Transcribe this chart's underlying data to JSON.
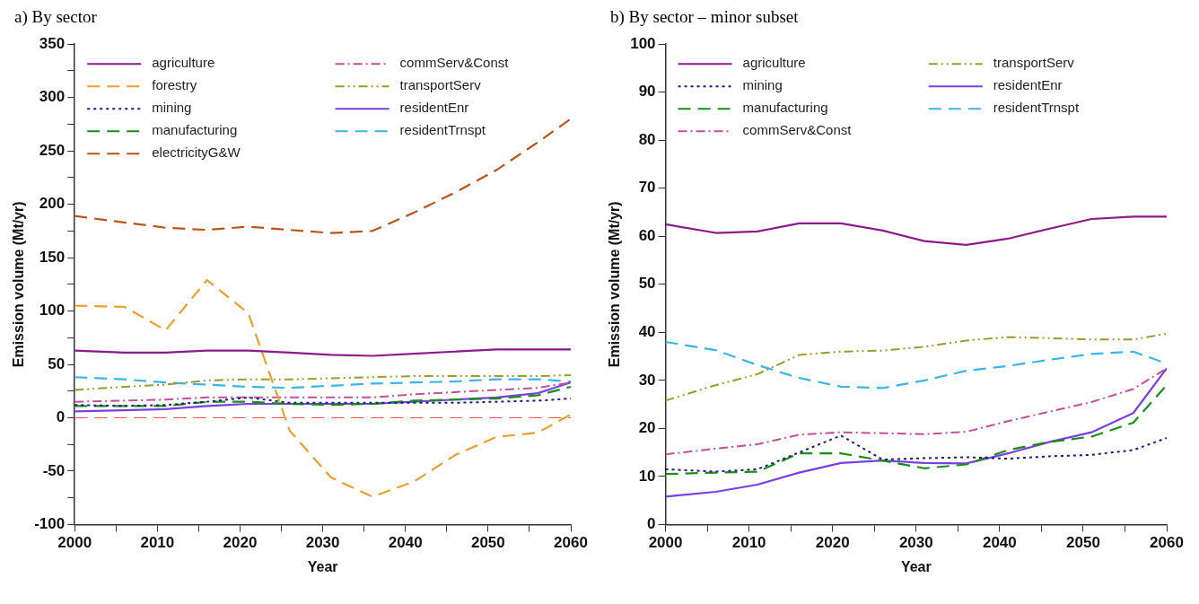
{
  "chart_data": [
    {
      "type": "line",
      "title": "a) By sector",
      "xlabel": "Year",
      "ylabel": "Emission volume (Mt/yr)",
      "x": [
        2000,
        2006,
        2011,
        2016,
        2021,
        2026,
        2031,
        2036,
        2041,
        2046,
        2051,
        2056,
        2060
      ],
      "xlim": [
        2000,
        2060
      ],
      "xticks": [
        2000,
        {
          "value": 2005,
          "label": null
        },
        2010,
        {
          "value": 2015,
          "label": null
        },
        2020,
        {
          "value": 2025,
          "label": null
        },
        2030,
        {
          "value": 2035,
          "label": null
        },
        2040,
        {
          "value": 2045,
          "label": null
        },
        2050,
        {
          "value": 2055,
          "label": null
        },
        2060
      ],
      "ylim": [
        -100,
        350
      ],
      "yticks": [
        -100,
        {
          "value": -75,
          "label": null
        },
        -50,
        {
          "value": -25,
          "label": null
        },
        0,
        {
          "value": 25,
          "label": null
        },
        50,
        {
          "value": 75,
          "label": null
        },
        100,
        {
          "value": 125,
          "label": null
        },
        150,
        {
          "value": 175,
          "label": null
        },
        200,
        {
          "value": 225,
          "label": null
        },
        250,
        {
          "value": 275,
          "label": null
        },
        300,
        {
          "value": 325,
          "label": null
        },
        350
      ],
      "grid": false,
      "legend": "top left",
      "marker": "none",
      "ref_lines": [
        {
          "axis": "y",
          "value": 0,
          "color": "#e8504a",
          "line_style": "dashed"
        }
      ],
      "series": [
        {
          "name": "agriculture",
          "color": "#8b1a8b",
          "line_style": "solid",
          "values": [
            63,
            61,
            61,
            63,
            63,
            61,
            59,
            58,
            60,
            62,
            64,
            64,
            64
          ]
        },
        {
          "name": "forestry",
          "color": "#e8a030",
          "line_style": "dashed",
          "values": [
            105,
            104,
            82,
            129,
            98,
            -12,
            -56,
            -74,
            -60,
            -35,
            -18,
            -14,
            3
          ]
        },
        {
          "name": "mining",
          "color": "#1a1a80",
          "line_style": "dotted",
          "values": [
            12,
            11,
            12,
            15,
            19,
            14,
            14,
            14,
            14,
            14,
            15,
            16,
            18
          ]
        },
        {
          "name": "manufacturing",
          "color": "#1a8c1a",
          "line_style": "dashed",
          "values": [
            11,
            11,
            11,
            15,
            15,
            13,
            12,
            13,
            16,
            17,
            18,
            21,
            29
          ]
        },
        {
          "name": "electricityG&W",
          "color": "#b85418",
          "line_style": "dashed",
          "values": [
            189,
            183,
            178,
            176,
            179,
            176,
            173,
            175,
            192,
            211,
            232,
            258,
            280
          ]
        },
        {
          "name": "commServ&Const",
          "color": "#c0509a",
          "line_style": "dashdot",
          "values": [
            15,
            16,
            17,
            19,
            19,
            19,
            19,
            19,
            22,
            24,
            26,
            28,
            33
          ]
        },
        {
          "name": "transportServ",
          "color": "#9a9a30",
          "line_style": "dashdotdot",
          "values": [
            26,
            29,
            31,
            35,
            36,
            36,
            37,
            38,
            39,
            39,
            39,
            39,
            40
          ]
        },
        {
          "name": "residentEnr",
          "color": "#7b3fe0",
          "line_style": "solid",
          "values": [
            6,
            7,
            8,
            11,
            13,
            13,
            13,
            13,
            15,
            17,
            19,
            23,
            33
          ]
        },
        {
          "name": "residentTrnspt",
          "color": "#3cb4e6",
          "line_style": "dashed",
          "values": [
            38,
            36,
            33,
            31,
            29,
            28,
            30,
            32,
            33,
            34,
            36,
            36,
            34
          ]
        }
      ]
    },
    {
      "type": "line",
      "title": "b) By sector – minor subset",
      "xlabel": "Year",
      "ylabel": "Emission volume (Mt/yr)",
      "x": [
        2000,
        2006,
        2011,
        2016,
        2021,
        2026,
        2031,
        2036,
        2041,
        2046,
        2051,
        2056,
        2060
      ],
      "xlim": [
        2000,
        2060
      ],
      "xticks": [
        2000,
        {
          "value": 2005,
          "label": null
        },
        2010,
        {
          "value": 2015,
          "label": null
        },
        2020,
        {
          "value": 2025,
          "label": null
        },
        2030,
        {
          "value": 2035,
          "label": null
        },
        2040,
        {
          "value": 2045,
          "label": null
        },
        2050,
        {
          "value": 2055,
          "label": null
        },
        2060
      ],
      "ylim": [
        0,
        100
      ],
      "yticks": [
        0,
        10,
        20,
        30,
        40,
        50,
        60,
        70,
        80,
        90,
        100
      ],
      "grid": false,
      "legend": "top left",
      "marker": "none",
      "series": [
        {
          "name": "agriculture",
          "color": "#8b1a8b",
          "line_style": "solid",
          "values": [
            62.5,
            60.7,
            61,
            62.7,
            62.7,
            61.2,
            59,
            58.2,
            59.5,
            61.6,
            63.6,
            64.1,
            64.1
          ]
        },
        {
          "name": "mining",
          "color": "#1a1a80",
          "line_style": "dotted",
          "values": [
            11.5,
            11,
            11.5,
            15,
            18.5,
            13.5,
            13.8,
            14,
            13.7,
            14.2,
            14.5,
            15.5,
            18
          ]
        },
        {
          "name": "manufacturing",
          "color": "#1a8c1a",
          "line_style": "dashed",
          "values": [
            10.5,
            10.8,
            11,
            14.8,
            14.8,
            13.3,
            11.7,
            12.5,
            15.5,
            17.2,
            18.3,
            21.2,
            29
          ]
        },
        {
          "name": "commServ&Const",
          "color": "#c0509a",
          "line_style": "dashdot",
          "values": [
            14.6,
            15.8,
            16.7,
            18.7,
            19.2,
            19,
            18.8,
            19.3,
            21.5,
            23.5,
            25.5,
            28.2,
            32.5
          ]
        },
        {
          "name": "transportServ",
          "color": "#9a9a30",
          "line_style": "dashdotdot",
          "values": [
            25.8,
            29,
            31.3,
            35.3,
            36,
            36.2,
            37,
            38.3,
            39,
            38.8,
            38.5,
            38.5,
            39.7
          ]
        },
        {
          "name": "residentEnr",
          "color": "#7b3fe0",
          "line_style": "solid",
          "values": [
            5.8,
            6.8,
            8.3,
            10.8,
            12.8,
            13.3,
            12.8,
            12.7,
            14.8,
            17.2,
            19.2,
            23.2,
            32.5
          ]
        },
        {
          "name": "residentTrnspt",
          "color": "#3cb4e6",
          "line_style": "dashed",
          "values": [
            38,
            36.3,
            33.2,
            30.5,
            28.7,
            28.4,
            30,
            32,
            33,
            34.3,
            35.5,
            36,
            33.5
          ]
        }
      ]
    }
  ]
}
